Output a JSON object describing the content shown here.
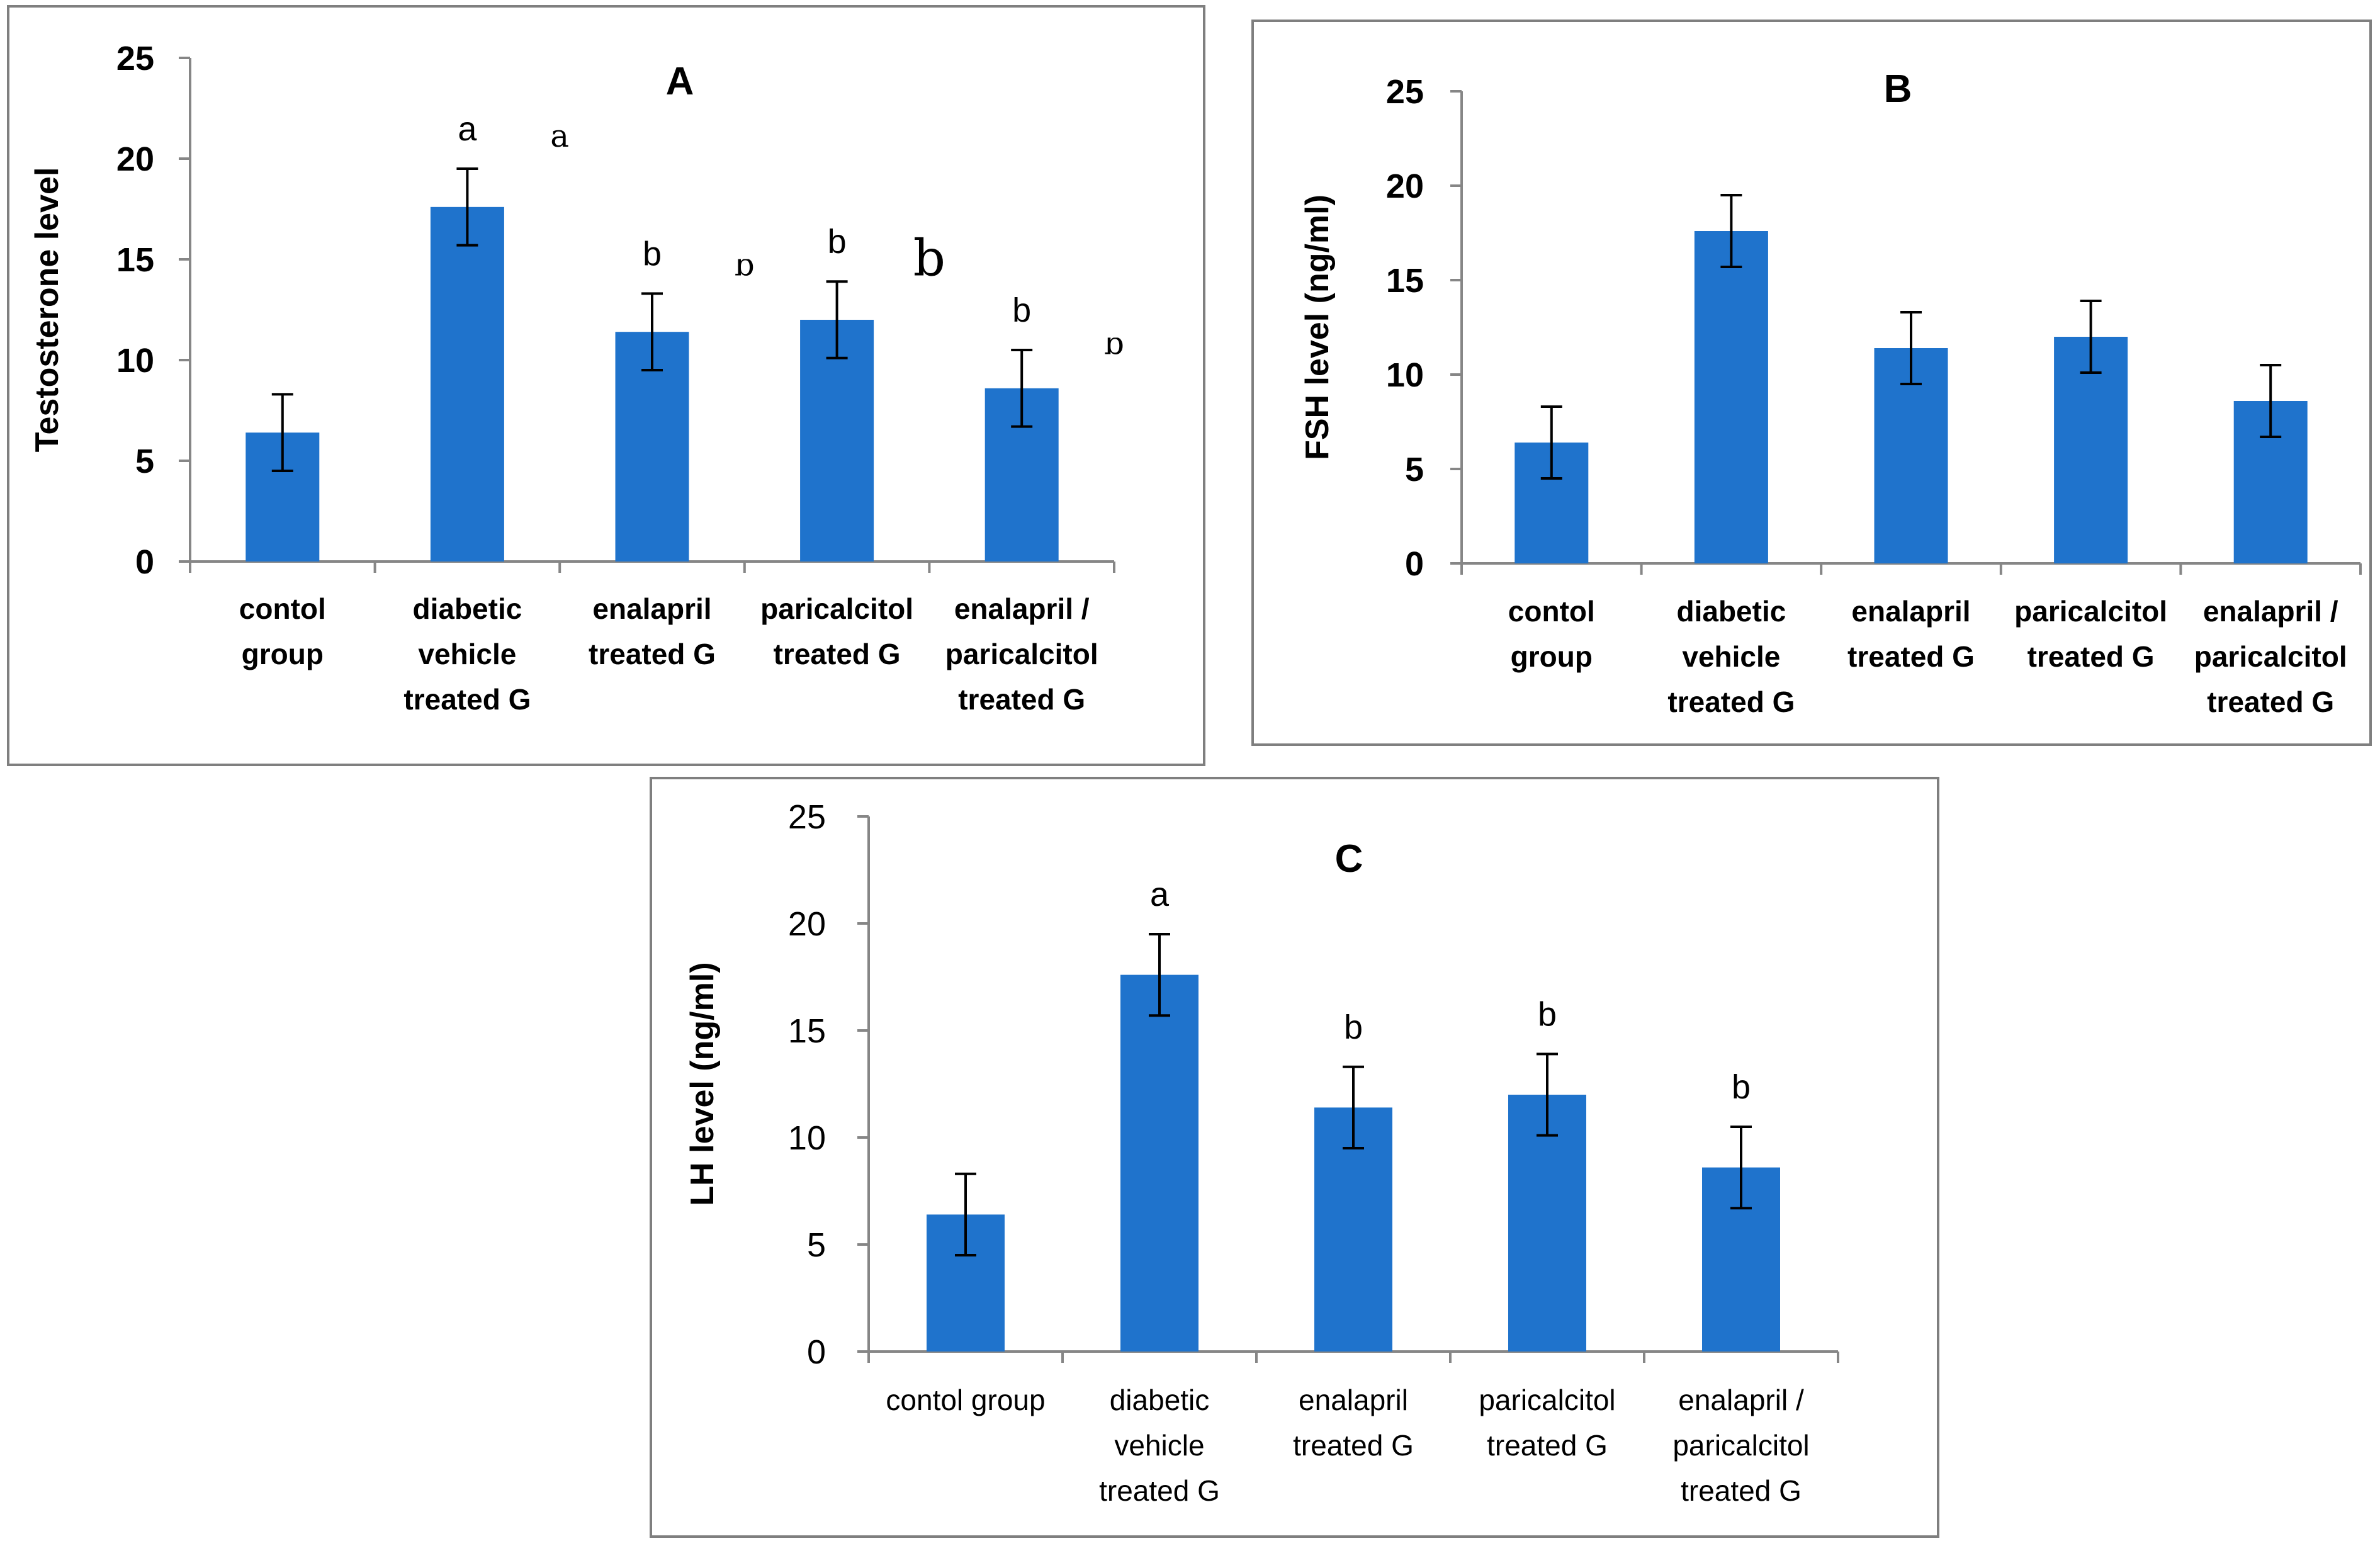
{
  "chart_data": [
    {
      "type": "bar",
      "title": "A",
      "xlabel": "",
      "ylabel": "Testosterone level",
      "ylim": [
        0,
        25
      ],
      "yticks": [
        "0",
        "5",
        "10",
        "15",
        "20",
        "25"
      ],
      "categories": [
        [
          "contol",
          "group"
        ],
        [
          "diabetic",
          "vehicle",
          "treated G"
        ],
        [
          "enalapril",
          "treated G"
        ],
        [
          "paricalcitol",
          "treated G"
        ],
        [
          "enalapril /",
          "paricalcitol",
          "treated G"
        ]
      ],
      "values": [
        6.4,
        17.6,
        11.4,
        12.0,
        8.6
      ],
      "errors": [
        1.9,
        1.9,
        1.9,
        1.9,
        1.9
      ],
      "significance": [
        "",
        "a",
        "b",
        "b",
        "b"
      ],
      "stray_letters": [
        {
          "text": "a",
          "after": 1,
          "value": 20.6,
          "size": 50,
          "clip": true
        },
        {
          "text": "b",
          "after": 2,
          "value": 14.2,
          "size": 50,
          "clip": true
        },
        {
          "text": "b",
          "after": 3,
          "value": 14.2,
          "size": 80,
          "clip": false
        },
        {
          "text": "b",
          "after": 4,
          "value": 10.3,
          "size": 50,
          "clip": true
        }
      ]
    },
    {
      "type": "bar",
      "title": "B",
      "xlabel": "",
      "ylabel": "FSH level (ng/ml)",
      "ylim": [
        0,
        25
      ],
      "yticks": [
        "0",
        "5",
        "10",
        "15",
        "20",
        "25"
      ],
      "categories": [
        [
          "contol",
          "group"
        ],
        [
          "diabetic",
          "vehicle",
          "treated G"
        ],
        [
          "enalapril",
          "treated G"
        ],
        [
          "paricalcitol",
          "treated G"
        ],
        [
          "enalapril /",
          "paricalcitol",
          "treated G"
        ]
      ],
      "values": [
        6.4,
        17.6,
        11.4,
        12.0,
        8.6
      ],
      "errors": [
        1.9,
        1.9,
        1.9,
        1.9,
        1.9
      ],
      "significance": [
        "",
        "",
        "",
        "",
        ""
      ],
      "stray_letters": []
    },
    {
      "type": "bar",
      "title": "C",
      "xlabel": "",
      "ylabel": "LH level (ng/ml)",
      "ylim": [
        0,
        25
      ],
      "yticks": [
        "0",
        "5",
        "10",
        "15",
        "20",
        "25"
      ],
      "categories": [
        [
          "contol group"
        ],
        [
          "diabetic",
          "vehicle",
          "treated G"
        ],
        [
          "enalapril",
          "treated G"
        ],
        [
          "paricalcitol",
          "treated G"
        ],
        [
          "enalapril /",
          "paricalcitol",
          "treated G"
        ]
      ],
      "values": [
        6.4,
        17.6,
        11.4,
        12.0,
        8.6
      ],
      "errors": [
        1.9,
        1.9,
        1.9,
        1.9,
        1.9
      ],
      "significance": [
        "",
        "a",
        "b",
        "b",
        "b"
      ],
      "stray_letters": []
    }
  ]
}
